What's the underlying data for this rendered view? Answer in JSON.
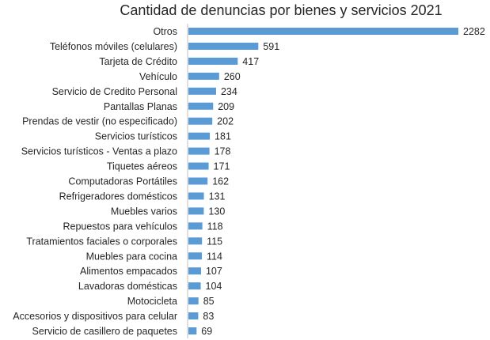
{
  "chart_data": {
    "type": "bar",
    "orientation": "horizontal",
    "title": "Cantidad de denuncias por bienes y servicios 2021",
    "xlabel": "",
    "ylabel": "",
    "grid": false,
    "legend": "none",
    "bar_color": "#5B9BD5",
    "xlim": [
      0,
      2300
    ],
    "categories": [
      "Otros",
      "Teléfonos móviles (celulares)",
      "Tarjeta de Crédito",
      "Vehículo",
      "Servicio de Credito Personal",
      "Pantallas Planas",
      "Prendas de vestir (no especificado)",
      "Servicios turísticos",
      "Servicios turísticos - Ventas a plazo",
      "Tiquetes aéreos",
      "Computadoras Portátiles",
      "Refrigeradores domésticos",
      "Muebles varios",
      "Repuestos para vehículos",
      "Tratamientos faciales o corporales",
      "Muebles para cocina",
      "Alimentos empacados",
      "Lavadoras domésticas",
      "Motocicleta",
      "Accesorios y dispositivos para celular",
      "Servicio de casillero de paquetes"
    ],
    "values": [
      2282,
      591,
      417,
      260,
      234,
      209,
      202,
      181,
      178,
      171,
      162,
      131,
      130,
      118,
      115,
      114,
      107,
      104,
      85,
      83,
      69
    ]
  }
}
